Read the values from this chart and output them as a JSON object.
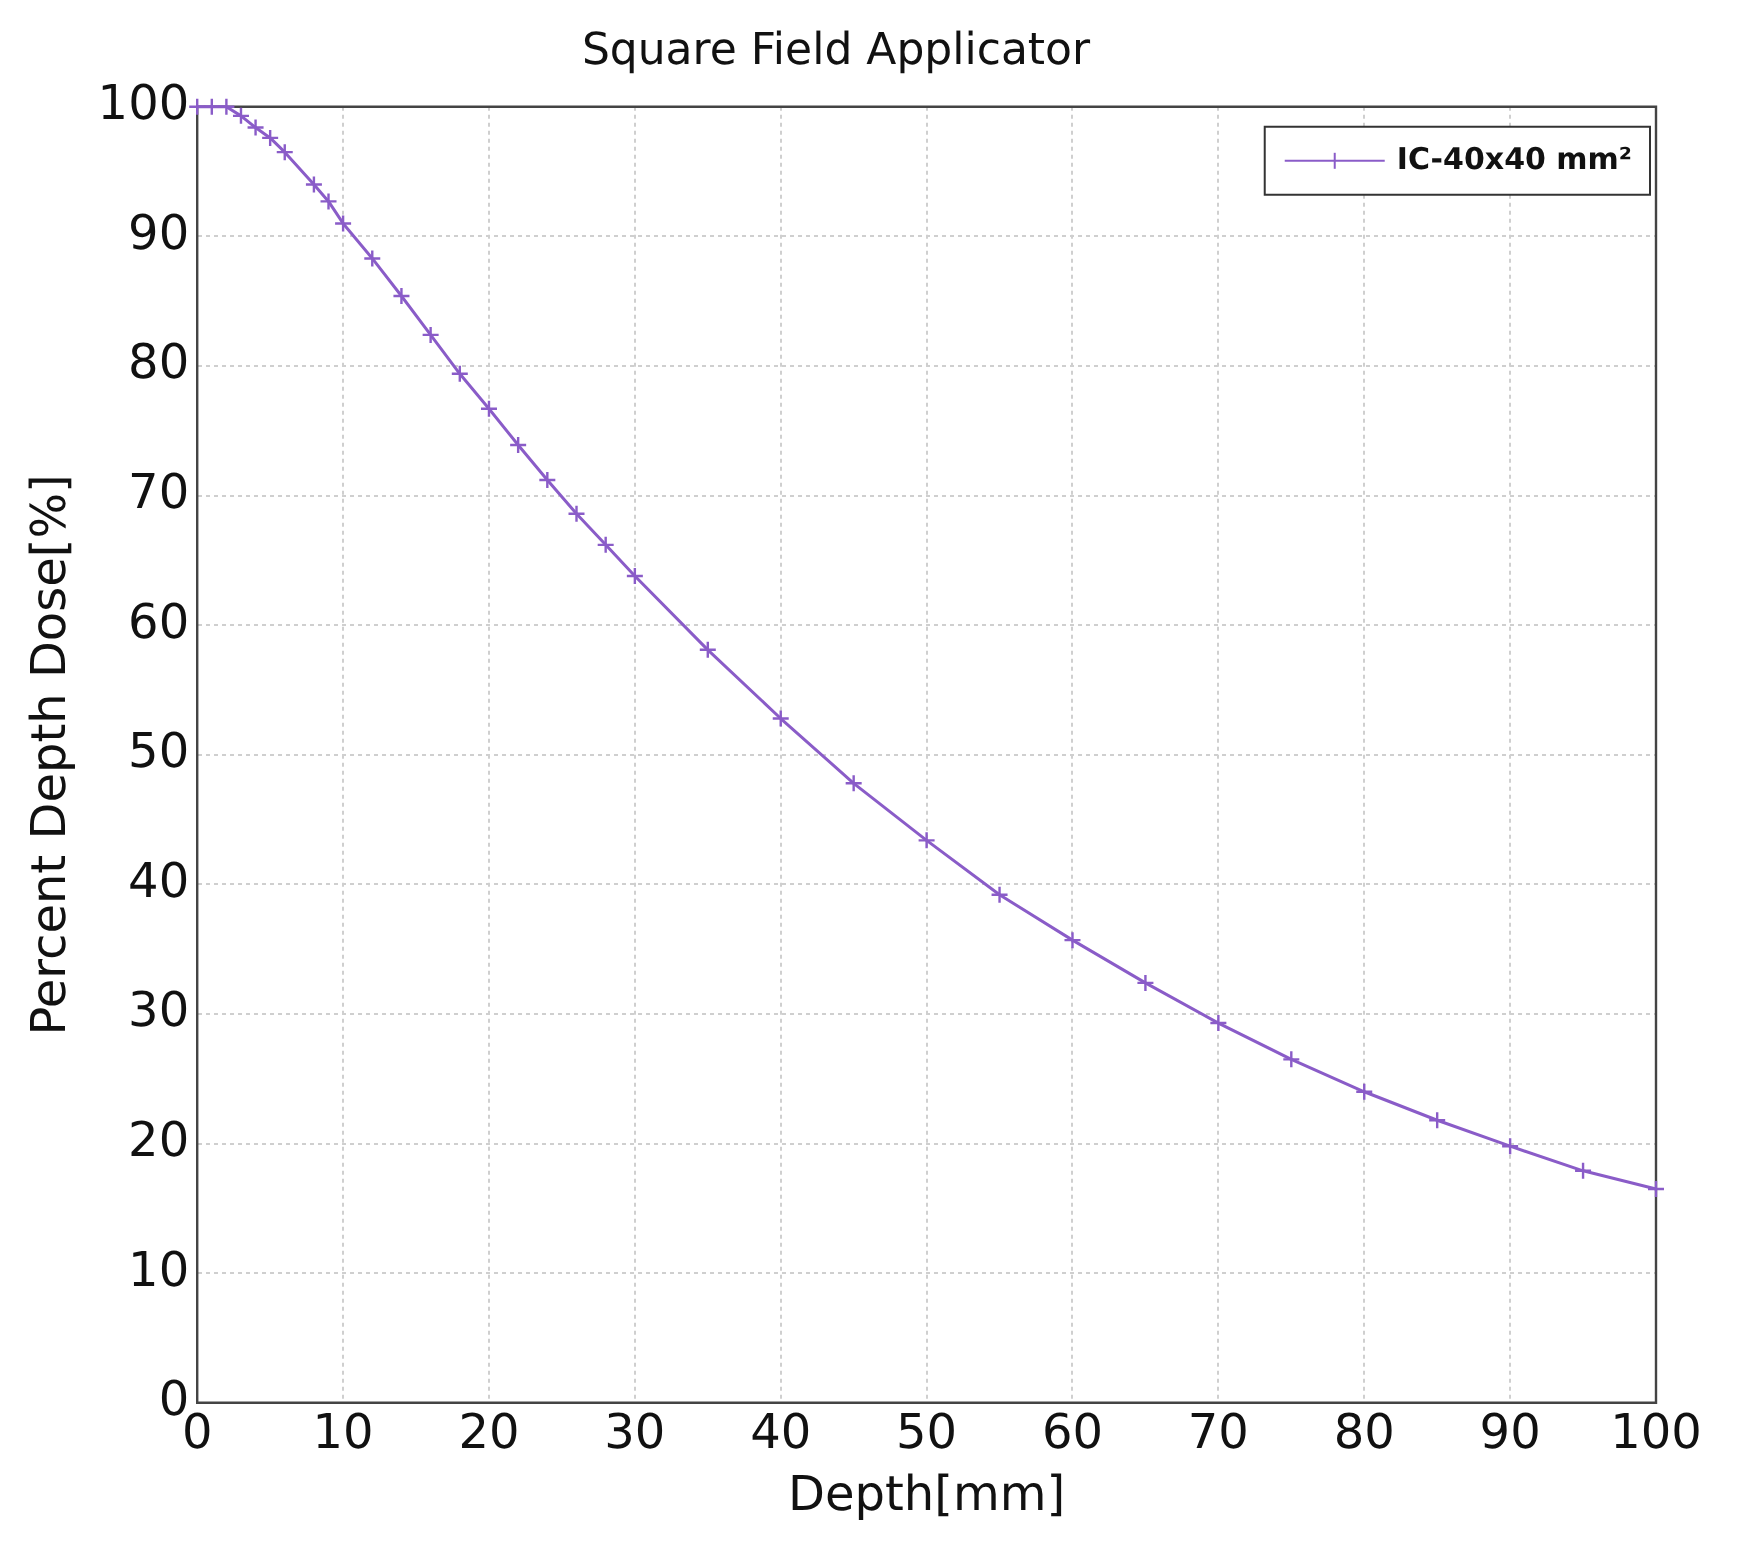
{
  "chart_data": {
    "type": "line",
    "title": "Square Field Applicator",
    "xlabel": "Depth[mm]",
    "ylabel": "Percent Depth Dose[%]",
    "x": [
      0,
      1,
      2,
      3,
      4,
      5,
      6,
      8,
      9,
      10,
      12,
      14,
      16,
      18,
      20,
      22,
      24,
      26,
      28,
      30,
      35,
      40,
      45,
      50,
      55,
      60,
      65,
      70,
      75,
      80,
      85,
      90,
      95,
      100
    ],
    "series": [
      {
        "name": "IC-40x40 mm²",
        "color": "#8a5cc8",
        "values": [
          100,
          100,
          100,
          99.3,
          98.4,
          97.6,
          96.5,
          94,
          92.7,
          91,
          88.3,
          85.4,
          82.4,
          79.4,
          76.7,
          73.9,
          71.2,
          68.6,
          66.2,
          63.8,
          58.1,
          52.8,
          47.8,
          43.4,
          39.2,
          35.7,
          32.4,
          29.3,
          26.5,
          24,
          21.8,
          19.8,
          17.9,
          16.5
        ]
      }
    ],
    "xlim": [
      0,
      100
    ],
    "xticks": [
      0,
      10,
      20,
      30,
      40,
      50,
      60,
      70,
      80,
      90,
      100
    ],
    "ylim": [
      0,
      100
    ],
    "yticks": [
      0,
      10,
      20,
      30,
      40,
      50,
      60,
      70,
      80,
      90,
      100
    ],
    "grid": true,
    "legend": "top right",
    "marker": "cross",
    "line_style": "solid"
  }
}
